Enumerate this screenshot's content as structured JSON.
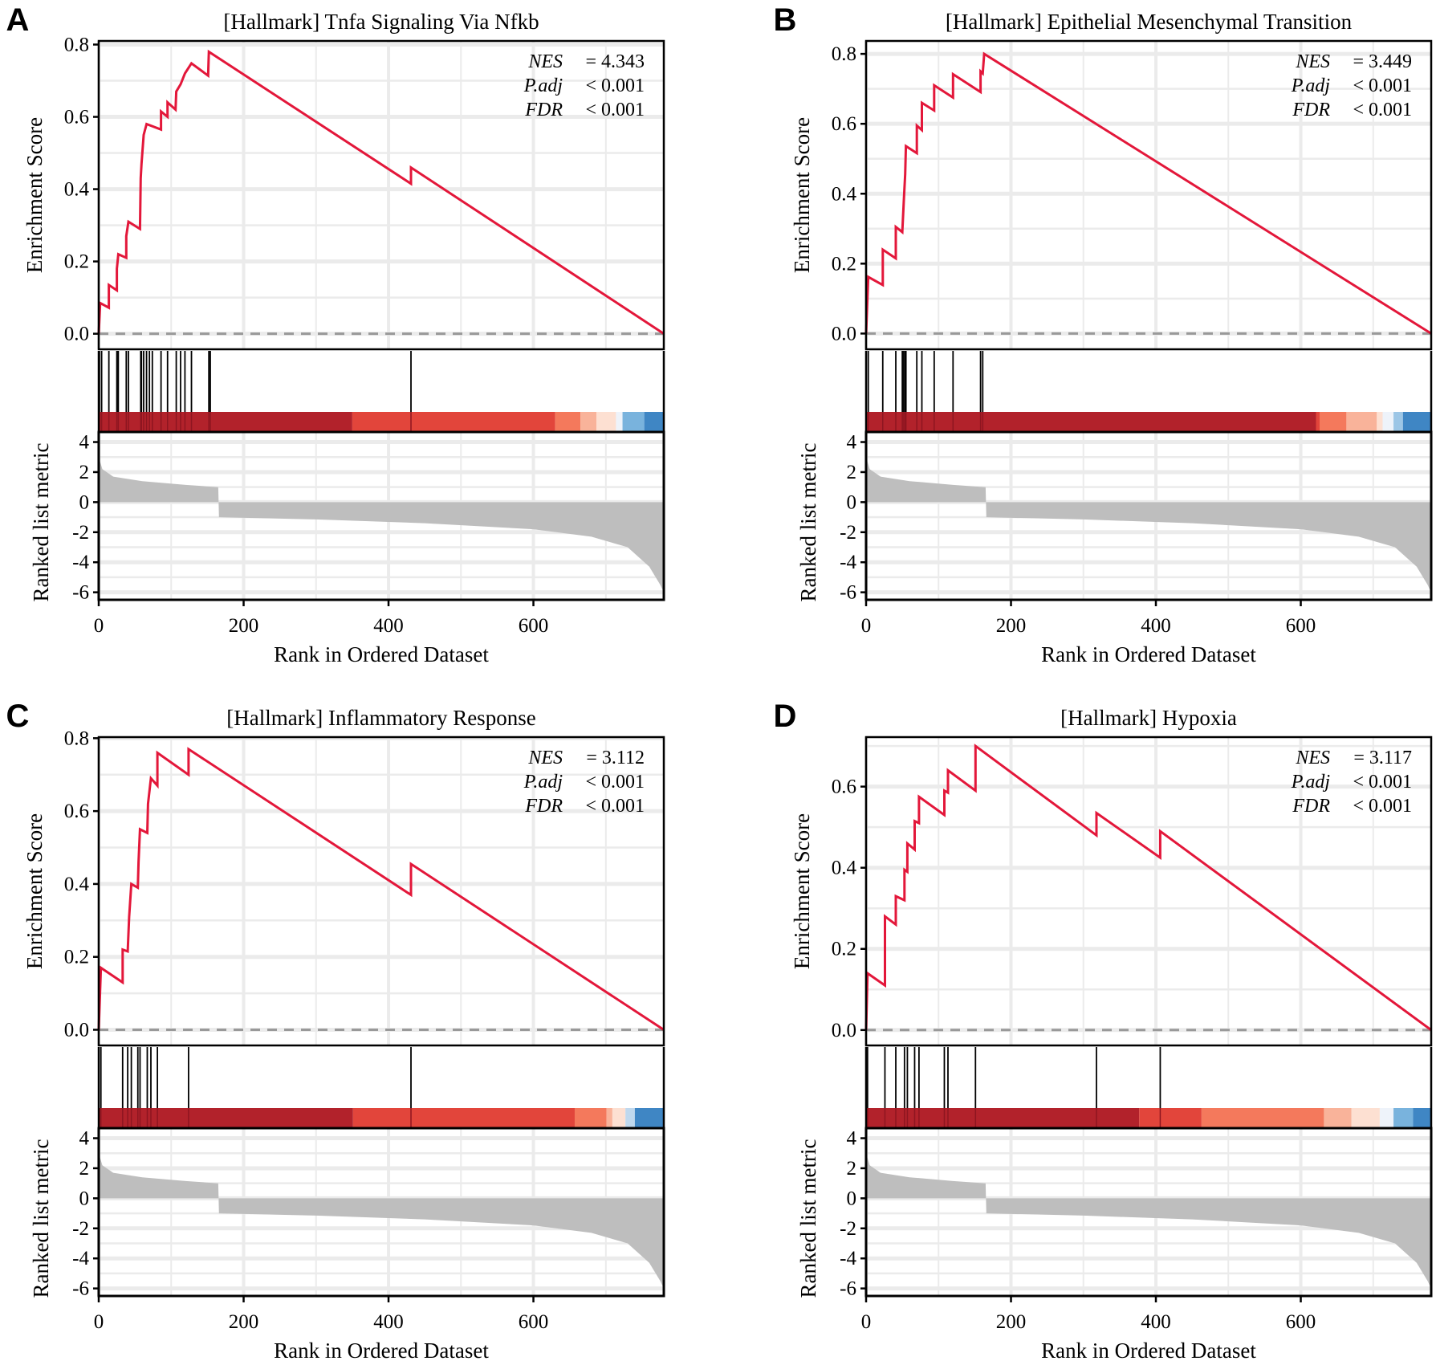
{
  "colors": {
    "curve": "#E3173A",
    "metric": "#BEBEBE",
    "grid": "#EBEBEB",
    "zero_line": "#999999",
    "hit": "#000000"
  },
  "chart_data": [
    {
      "type": "line",
      "panel_letter": "A",
      "title": "[Hallmark] Tnfa Signaling Via Nfkb",
      "xlabel": "Rank in Ordered Dataset",
      "ylabel_es": "Enrichment Score",
      "ylabel_metric": "Ranked list metric",
      "xlim": [
        0,
        780
      ],
      "x_ticks": [
        "0",
        "200",
        "400",
        "600"
      ],
      "es_ylim": [
        -0.043,
        0.81
      ],
      "es_ticks": [
        "0.0",
        "0.2",
        "0.4",
        "0.6",
        "0.8"
      ],
      "metric_ylim": [
        -6.5,
        4.67
      ],
      "metric_ticks": [
        "-6",
        "-4",
        "-2",
        "0",
        "2",
        "4"
      ],
      "stats": {
        "nes_label": "NES",
        "nes_value": "= 4.343",
        "padj_label": "P.adj",
        "padj_value": "< 0.001",
        "fdr_label": "FDR",
        "fdr_value": "< 0.001"
      },
      "es_curve": [
        [
          0,
          0
        ],
        [
          2,
          0.085
        ],
        [
          14,
          0.072
        ],
        [
          14,
          0.135
        ],
        [
          25,
          0.12
        ],
        [
          25,
          0.18
        ],
        [
          27,
          0.22
        ],
        [
          38,
          0.21
        ],
        [
          38,
          0.27
        ],
        [
          41,
          0.31
        ],
        [
          57,
          0.29
        ],
        [
          58,
          0.43
        ],
        [
          59,
          0.47
        ],
        [
          62,
          0.55
        ],
        [
          66,
          0.58
        ],
        [
          86,
          0.565
        ],
        [
          86,
          0.615
        ],
        [
          95,
          0.6
        ],
        [
          95,
          0.64
        ],
        [
          106,
          0.62
        ],
        [
          107,
          0.67
        ],
        [
          113,
          0.69
        ],
        [
          119,
          0.72
        ],
        [
          128,
          0.748
        ],
        [
          151,
          0.714
        ],
        [
          152,
          0.78
        ],
        [
          431,
          0.415
        ],
        [
          431,
          0.46
        ],
        [
          780,
          0
        ]
      ],
      "hits": [
        1,
        4,
        14,
        25,
        27,
        38,
        41,
        58,
        59,
        62,
        66,
        70,
        74,
        86,
        95,
        107,
        113,
        119,
        128,
        152,
        154,
        431
      ],
      "color_bar": [
        {
          "end": 350,
          "color": "#B2222B"
        },
        {
          "end": 630,
          "color": "#E2453B"
        },
        {
          "end": 665,
          "color": "#F4795C"
        },
        {
          "end": 687,
          "color": "#F9B39A"
        },
        {
          "end": 714,
          "color": "#FDE0D2"
        },
        {
          "end": 723,
          "color": "#EEF3FA"
        },
        {
          "end": 753,
          "color": "#79B3DD"
        },
        {
          "end": 780,
          "color": "#3F86C4"
        }
      ],
      "metric_curve": [
        [
          0,
          3
        ],
        [
          5,
          2.2
        ],
        [
          20,
          1.7
        ],
        [
          60,
          1.4
        ],
        [
          120,
          1.15
        ],
        [
          165,
          1.0
        ],
        [
          166,
          -1.0
        ],
        [
          300,
          -1.15
        ],
        [
          450,
          -1.4
        ],
        [
          600,
          -1.8
        ],
        [
          680,
          -2.3
        ],
        [
          730,
          -3.0
        ],
        [
          760,
          -4.3
        ],
        [
          775,
          -5.5
        ],
        [
          780,
          -6.0
        ]
      ]
    },
    {
      "type": "line",
      "panel_letter": "B",
      "title": "[Hallmark] Epithelial Mesenchymal Transition",
      "xlabel": "Rank in Ordered Dataset",
      "ylabel_es": "Enrichment Score",
      "ylabel_metric": "Ranked list metric",
      "xlim": [
        0,
        780
      ],
      "x_ticks": [
        "0",
        "200",
        "400",
        "600"
      ],
      "es_ylim": [
        -0.045,
        0.837
      ],
      "es_ticks": [
        "0.0",
        "0.2",
        "0.4",
        "0.6",
        "0.8"
      ],
      "metric_ylim": [
        -6.5,
        4.67
      ],
      "metric_ticks": [
        "-6",
        "-4",
        "-2",
        "0",
        "2",
        "4"
      ],
      "stats": {
        "nes_label": "NES",
        "nes_value": "= 3.449",
        "padj_label": "P.adj",
        "padj_value": "< 0.001",
        "fdr_label": "FDR",
        "fdr_value": "< 0.001"
      },
      "es_curve": [
        [
          0,
          0
        ],
        [
          3,
          0.162
        ],
        [
          23,
          0.139
        ],
        [
          23,
          0.24
        ],
        [
          41,
          0.215
        ],
        [
          41,
          0.305
        ],
        [
          50,
          0.29
        ],
        [
          52,
          0.376
        ],
        [
          54,
          0.456
        ],
        [
          55,
          0.536
        ],
        [
          70,
          0.516
        ],
        [
          70,
          0.595
        ],
        [
          77,
          0.582
        ],
        [
          77,
          0.66
        ],
        [
          94,
          0.638
        ],
        [
          94,
          0.71
        ],
        [
          120,
          0.675
        ],
        [
          120,
          0.742
        ],
        [
          158,
          0.691
        ],
        [
          158,
          0.75
        ],
        [
          161,
          0.744
        ],
        [
          163,
          0.8
        ],
        [
          780,
          0
        ]
      ],
      "hits": [
        3,
        23,
        41,
        50,
        52,
        54,
        55,
        70,
        77,
        94,
        120,
        158,
        161
      ],
      "color_bar": [
        {
          "end": 621,
          "color": "#B2222B"
        },
        {
          "end": 626,
          "color": "#E2453B"
        },
        {
          "end": 663,
          "color": "#F4795C"
        },
        {
          "end": 705,
          "color": "#F9B39A"
        },
        {
          "end": 713,
          "color": "#FDE0D2"
        },
        {
          "end": 728,
          "color": "#EEF3FA"
        },
        {
          "end": 741,
          "color": "#9CC6E6"
        },
        {
          "end": 780,
          "color": "#3F86C4"
        }
      ],
      "metric_curve": [
        [
          0,
          3
        ],
        [
          5,
          2.2
        ],
        [
          20,
          1.7
        ],
        [
          60,
          1.4
        ],
        [
          120,
          1.15
        ],
        [
          165,
          1.0
        ],
        [
          166,
          -1.0
        ],
        [
          300,
          -1.15
        ],
        [
          450,
          -1.4
        ],
        [
          600,
          -1.8
        ],
        [
          680,
          -2.3
        ],
        [
          730,
          -3.0
        ],
        [
          760,
          -4.3
        ],
        [
          775,
          -5.5
        ],
        [
          780,
          -6.0
        ]
      ]
    },
    {
      "type": "line",
      "panel_letter": "C",
      "title": "[Hallmark] Inflammatory Response",
      "xlabel": "Rank in Ordered Dataset",
      "ylabel_es": "Enrichment Score",
      "ylabel_metric": "Ranked list metric",
      "xlim": [
        0,
        780
      ],
      "x_ticks": [
        "0",
        "200",
        "400",
        "600"
      ],
      "es_ylim": [
        -0.043,
        0.803
      ],
      "es_ticks": [
        "0.0",
        "0.2",
        "0.4",
        "0.6",
        "0.8"
      ],
      "metric_ylim": [
        -6.5,
        4.67
      ],
      "metric_ticks": [
        "-6",
        "-4",
        "-2",
        "0",
        "2",
        "4"
      ],
      "stats": {
        "nes_label": "NES",
        "nes_value": "= 3.112",
        "padj_label": "P.adj",
        "padj_value": "< 0.001",
        "fdr_label": "FDR",
        "fdr_value": "< 0.001"
      },
      "es_curve": [
        [
          0,
          0
        ],
        [
          3,
          0.17
        ],
        [
          33,
          0.13
        ],
        [
          33,
          0.22
        ],
        [
          40,
          0.215
        ],
        [
          42,
          0.31
        ],
        [
          45,
          0.4
        ],
        [
          54,
          0.39
        ],
        [
          55,
          0.46
        ],
        [
          57,
          0.55
        ],
        [
          67,
          0.54
        ],
        [
          68,
          0.62
        ],
        [
          72,
          0.69
        ],
        [
          81,
          0.67
        ],
        [
          81,
          0.76
        ],
        [
          124,
          0.7
        ],
        [
          124,
          0.77
        ],
        [
          431,
          0.37
        ],
        [
          431,
          0.455
        ],
        [
          780,
          0
        ]
      ],
      "hits": [
        3,
        33,
        40,
        45,
        54,
        57,
        67,
        72,
        81,
        124,
        431
      ],
      "color_bar": [
        {
          "end": 351,
          "color": "#B2222B"
        },
        {
          "end": 657,
          "color": "#E2453B"
        },
        {
          "end": 701,
          "color": "#F4795C"
        },
        {
          "end": 709,
          "color": "#F9B39A"
        },
        {
          "end": 727,
          "color": "#FDE0D2"
        },
        {
          "end": 740,
          "color": "#BFD8EE"
        },
        {
          "end": 780,
          "color": "#3F86C4"
        }
      ],
      "metric_curve": [
        [
          0,
          3
        ],
        [
          5,
          2.2
        ],
        [
          20,
          1.7
        ],
        [
          60,
          1.4
        ],
        [
          120,
          1.15
        ],
        [
          165,
          1.0
        ],
        [
          166,
          -1.0
        ],
        [
          300,
          -1.15
        ],
        [
          450,
          -1.4
        ],
        [
          600,
          -1.8
        ],
        [
          680,
          -2.3
        ],
        [
          730,
          -3.0
        ],
        [
          760,
          -4.3
        ],
        [
          775,
          -5.5
        ],
        [
          780,
          -6.0
        ]
      ]
    },
    {
      "type": "line",
      "panel_letter": "D",
      "title": "[Hallmark] Hypoxia",
      "xlabel": "Rank in Ordered Dataset",
      "ylabel_es": "Enrichment Score",
      "ylabel_metric": "Ranked list metric",
      "xlim": [
        0,
        780
      ],
      "x_ticks": [
        "0",
        "200",
        "400",
        "600"
      ],
      "es_ylim": [
        -0.038,
        0.722
      ],
      "es_ticks": [
        "0.0",
        "0.2",
        "0.4",
        "0.6"
      ],
      "metric_ylim": [
        -6.5,
        4.67
      ],
      "metric_ticks": [
        "-6",
        "-4",
        "-2",
        "0",
        "2",
        "4"
      ],
      "stats": {
        "nes_label": "NES",
        "nes_value": "= 3.117",
        "padj_label": "P.adj",
        "padj_value": "< 0.001",
        "fdr_label": "FDR",
        "fdr_value": "< 0.001"
      },
      "es_curve": [
        [
          0,
          0
        ],
        [
          2,
          0.14
        ],
        [
          26,
          0.11
        ],
        [
          26,
          0.28
        ],
        [
          41,
          0.26
        ],
        [
          41,
          0.33
        ],
        [
          53,
          0.32
        ],
        [
          53,
          0.395
        ],
        [
          57,
          0.39
        ],
        [
          57,
          0.46
        ],
        [
          67,
          0.445
        ],
        [
          67,
          0.515
        ],
        [
          73,
          0.51
        ],
        [
          73,
          0.575
        ],
        [
          108,
          0.53
        ],
        [
          108,
          0.59
        ],
        [
          113,
          0.585
        ],
        [
          113,
          0.64
        ],
        [
          151,
          0.59
        ],
        [
          151,
          0.7
        ],
        [
          318,
          0.48
        ],
        [
          318,
          0.535
        ],
        [
          406,
          0.425
        ],
        [
          406,
          0.49
        ],
        [
          780,
          0
        ]
      ],
      "hits": [
        2,
        26,
        41,
        53,
        57,
        67,
        73,
        108,
        113,
        151,
        318,
        406
      ],
      "color_bar": [
        {
          "end": 377,
          "color": "#B2222B"
        },
        {
          "end": 463,
          "color": "#E2453B"
        },
        {
          "end": 632,
          "color": "#F4795C"
        },
        {
          "end": 670,
          "color": "#F9B39A"
        },
        {
          "end": 709,
          "color": "#FDE0D2"
        },
        {
          "end": 728,
          "color": "#EEF3FA"
        },
        {
          "end": 755,
          "color": "#79B3DD"
        },
        {
          "end": 780,
          "color": "#3F86C4"
        }
      ],
      "metric_curve": [
        [
          0,
          3
        ],
        [
          5,
          2.2
        ],
        [
          20,
          1.7
        ],
        [
          60,
          1.4
        ],
        [
          120,
          1.15
        ],
        [
          165,
          1.0
        ],
        [
          166,
          -1.0
        ],
        [
          300,
          -1.15
        ],
        [
          450,
          -1.4
        ],
        [
          600,
          -1.8
        ],
        [
          680,
          -2.3
        ],
        [
          730,
          -3.0
        ],
        [
          760,
          -4.3
        ],
        [
          775,
          -5.5
        ],
        [
          780,
          -6.0
        ]
      ]
    }
  ]
}
